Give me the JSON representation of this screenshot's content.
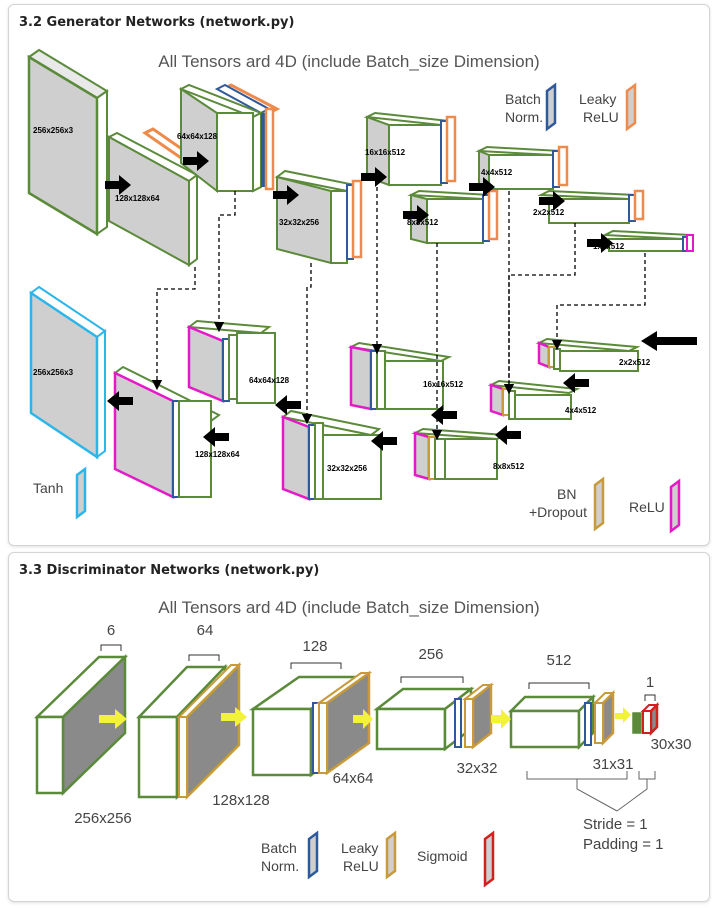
{
  "generator": {
    "section_title": "3.2 Generator Networks (network.py)",
    "heading": "All Tensors ard 4D (include Batch_size Dimension)",
    "legend": {
      "batchnorm_line1": "Batch",
      "batchnorm_line2": "Norm.",
      "leaky_line1": "Leaky",
      "leaky_line2": "ReLU",
      "tanh": "Tanh",
      "bn_line1": "BN",
      "bn_line2": "+Dropout",
      "relu": "ReLU"
    },
    "encoder_labels": [
      "256x256x3",
      "128x128x64",
      "64x64x128",
      "32x32x256",
      "16x16x512",
      "8x8x512",
      "4x4x512",
      "2x2x512",
      "1x1x512"
    ],
    "decoder_labels": [
      "256x256x3",
      "128x128x64",
      "64x64x128",
      "32x32x256",
      "16x16x512",
      "8x8x512",
      "4x4x512",
      "2x2x512"
    ]
  },
  "discriminator": {
    "section_title": "3.3 Discriminator Networks (network.py)",
    "heading": "All Tensors ard 4D (include Batch_size Dimension)",
    "channel_labels": [
      "6",
      "64",
      "128",
      "256",
      "512",
      "1"
    ],
    "size_labels": [
      "256x256",
      "128x128",
      "64x64",
      "32x32",
      "31x31",
      "30x30"
    ],
    "stride": "Stride = 1",
    "padding": "Padding = 1",
    "legend": {
      "batchnorm_line1": "Batch",
      "batchnorm_line2": "Norm.",
      "leaky_line1": "Leaky",
      "leaky_line2": "ReLU",
      "sigmoid": "Sigmoid"
    }
  },
  "colors": {
    "green": "#5a8a3a",
    "blue": "#2e5a9c",
    "orange": "#f08a4b",
    "magenta": "#e619c8",
    "cyan": "#2ab6ea",
    "gold": "#c89a3a",
    "red": "#d12020",
    "yellow_arrow": "#f2f23a",
    "gray_face": "#cfcfcf"
  }
}
